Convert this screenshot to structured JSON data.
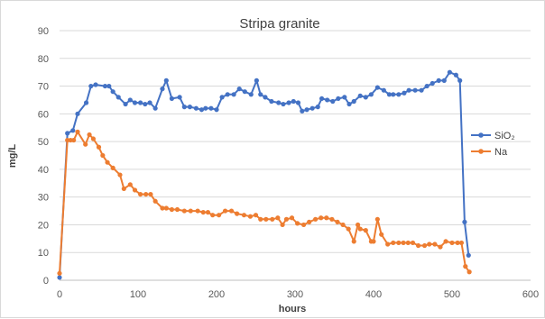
{
  "chart_data": {
    "type": "line",
    "title": "Stripa granite",
    "xlabel": "hours",
    "ylabel": "mg/L",
    "xlim": [
      0,
      600
    ],
    "ylim": [
      0,
      90
    ],
    "x_ticks": [
      "0",
      "100",
      "200",
      "300",
      "400",
      "500",
      "600"
    ],
    "y_ticks": [
      "0",
      "10",
      "20",
      "30",
      "40",
      "50",
      "60",
      "70",
      "80",
      "90"
    ],
    "grid": "horizontal",
    "legend_position": "right",
    "series": [
      {
        "name": "SiO₂",
        "color": "#4472c4",
        "x": [
          0,
          10,
          17,
          23,
          34,
          40,
          46,
          58,
          63,
          68,
          75,
          84,
          90,
          96,
          103,
          109,
          115,
          122,
          131,
          136,
          143,
          153,
          159,
          166,
          174,
          181,
          186,
          193,
          200,
          207,
          214,
          222,
          229,
          236,
          244,
          251,
          256,
          262,
          270,
          279,
          285,
          292,
          298,
          304,
          309,
          315,
          322,
          329,
          334,
          341,
          348,
          355,
          363,
          369,
          375,
          383,
          390,
          397,
          405,
          413,
          420,
          425,
          432,
          439,
          445,
          453,
          461,
          468,
          475,
          483,
          490,
          497,
          505,
          510,
          516,
          521
        ],
        "y": [
          1,
          53,
          54,
          60,
          64,
          70,
          70.5,
          70,
          70,
          68,
          66,
          63.5,
          65,
          64,
          64,
          63.5,
          64,
          62,
          69,
          72,
          65.5,
          66,
          62.5,
          62.5,
          62,
          61.5,
          62,
          62,
          61.5,
          66,
          67,
          67,
          69,
          68,
          67,
          72,
          67,
          66,
          64.5,
          64,
          63.5,
          64,
          64.5,
          64,
          61,
          61.5,
          62,
          62.5,
          65.5,
          65,
          64.5,
          65.5,
          66,
          63.5,
          64.5,
          66.5,
          66,
          67,
          69.5,
          68.5,
          67,
          67,
          67,
          67.5,
          68.5,
          68.5,
          68.5,
          70,
          71,
          72,
          72,
          75,
          74,
          72,
          21,
          9
        ]
      },
      {
        "name": "Na",
        "color": "#ed7d31",
        "x": [
          0,
          10,
          14,
          18,
          23,
          33,
          38,
          43,
          50,
          55,
          61,
          68,
          77,
          82,
          90,
          96,
          103,
          110,
          116,
          122,
          131,
          136,
          143,
          150,
          159,
          167,
          176,
          183,
          189,
          195,
          203,
          211,
          219,
          226,
          235,
          243,
          250,
          256,
          263,
          271,
          278,
          284,
          289,
          296,
          303,
          311,
          318,
          326,
          333,
          340,
          347,
          354,
          361,
          368,
          375,
          380,
          383,
          390,
          397,
          400,
          405,
          410,
          418,
          425,
          432,
          438,
          444,
          450,
          457,
          465,
          471,
          478,
          485,
          492,
          500,
          507,
          512,
          517,
          522
        ],
        "y": [
          2.5,
          50.5,
          50.5,
          50.5,
          53.5,
          49,
          52.5,
          51,
          48,
          45,
          42.5,
          40.5,
          38,
          33,
          34.5,
          32.5,
          31,
          31,
          31,
          28.5,
          26,
          26,
          25.5,
          25.5,
          25,
          25,
          25,
          24.5,
          24.5,
          23.5,
          23.5,
          25,
          25,
          24,
          23.5,
          23,
          23.5,
          22,
          22,
          22,
          22.5,
          20,
          22,
          22.5,
          20.5,
          20,
          21,
          22,
          22.5,
          22.5,
          22,
          21,
          20,
          18.5,
          14,
          20,
          18.5,
          18,
          14,
          14,
          22,
          16.5,
          13,
          13.5,
          13.5,
          13.5,
          13.5,
          13.5,
          12.5,
          12.5,
          13,
          13,
          12,
          14,
          13.5,
          13.5,
          13.5,
          5,
          3
        ]
      }
    ]
  }
}
